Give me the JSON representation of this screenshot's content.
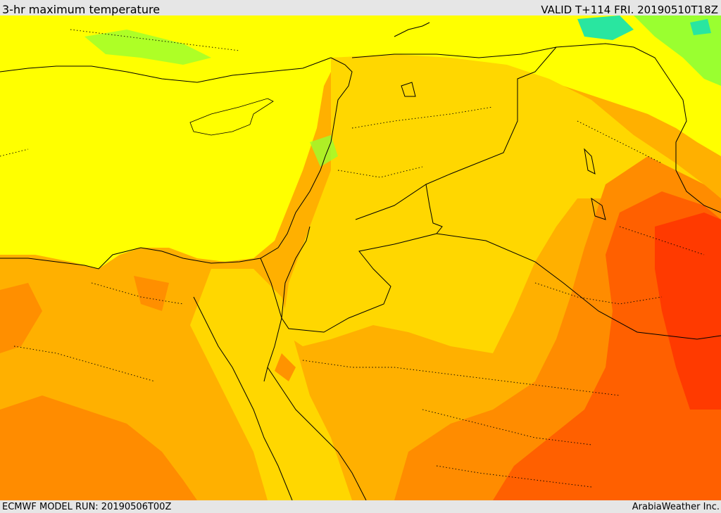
{
  "header": {
    "title": "3-hr maximum temperature",
    "valid": "VALID T+114 FRI. 20190510T18Z"
  },
  "footer": {
    "model_run": "ECMWF MODEL RUN: 20190506T00Z",
    "credit": "ArabiaWeather Inc."
  },
  "map": {
    "region": "Eastern Mediterranean / Levant / Northern Arabia",
    "colors": {
      "sea": "#ffff00",
      "cool": "#ffd700",
      "warm": "#ffb000",
      "warmer": "#ff8c00",
      "hot": "#ff6000",
      "hottest": "#ff3a00",
      "green": "#9aff30",
      "cyan": "#29e6a0",
      "border": "#000000"
    }
  }
}
